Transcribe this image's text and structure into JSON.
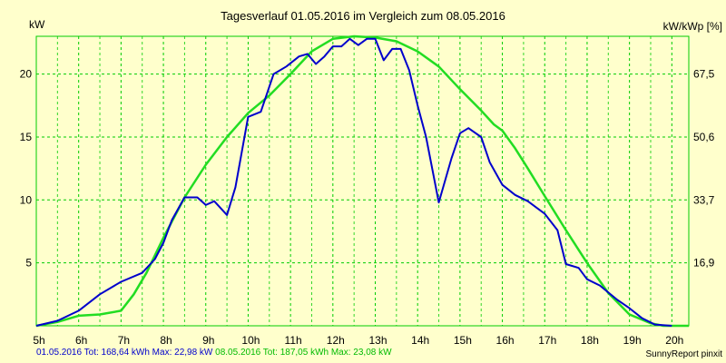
{
  "chart_data": {
    "type": "line",
    "title": "Tagesverlauf 01.05.2016 im Vergleich zum 08.05.2016",
    "ylabel": "kW",
    "y2label": "kW/kWp [%]",
    "xlim": [
      5,
      20.4
    ],
    "ylim": [
      0,
      23
    ],
    "x_ticks": [
      "5h",
      "6h",
      "7h",
      "8h",
      "9h",
      "10h",
      "11h",
      "12h",
      "13h",
      "14h",
      "15h",
      "16h",
      "17h",
      "18h",
      "19h",
      "20h"
    ],
    "y_ticks": [
      "5",
      "10",
      "15",
      "20"
    ],
    "y2_ticks": [
      "16,9",
      "33,7",
      "50,6",
      "67,5"
    ],
    "grid": true,
    "colors": {
      "background": "#ffffcc",
      "grid": "#00cc00",
      "series1": "#0000cc",
      "series2": "#22dd22"
    },
    "series": [
      {
        "name": "01.05.2016",
        "x": [
          5,
          5.5,
          6,
          6.5,
          7,
          7.5,
          7.8,
          8,
          8.2,
          8.5,
          8.8,
          9,
          9.2,
          9.5,
          9.7,
          10,
          10.3,
          10.6,
          10.9,
          11.2,
          11.4,
          11.6,
          11.8,
          12,
          12.2,
          12.4,
          12.6,
          12.8,
          13,
          13.2,
          13.4,
          13.6,
          13.8,
          14,
          14.2,
          14.5,
          14.8,
          15,
          15.2,
          15.5,
          15.7,
          16,
          16.3,
          16.6,
          17,
          17.3,
          17.5,
          17.8,
          18,
          18.3,
          18.7,
          19,
          19.3,
          19.6,
          20
        ],
        "y": [
          0,
          0.4,
          1.2,
          2.5,
          3.5,
          4.2,
          5.3,
          6.6,
          8.4,
          10.2,
          10.2,
          9.6,
          9.9,
          8.8,
          11,
          16.6,
          17.0,
          20.0,
          20.6,
          21.4,
          21.6,
          20.8,
          21.4,
          22.2,
          22.2,
          22.8,
          22.3,
          22.8,
          22.8,
          21.1,
          22.0,
          22.0,
          20.3,
          17.5,
          15,
          9.8,
          13.3,
          15.3,
          15.7,
          15.0,
          13.0,
          11.2,
          10.4,
          9.9,
          8.9,
          7.6,
          4.9,
          4.6,
          3.7,
          3.2,
          2.1,
          1.4,
          0.6,
          0.1,
          0
        ]
      },
      {
        "name": "08.05.2016",
        "x": [
          5,
          5.5,
          6,
          6.5,
          7,
          7.3,
          7.6,
          8,
          8.5,
          9,
          9.5,
          10,
          10.5,
          11,
          11.5,
          12,
          12.5,
          13,
          13.5,
          14,
          14.5,
          15,
          15.5,
          15.8,
          16,
          16.3,
          16.6,
          17,
          17.5,
          18,
          18.5,
          19,
          19.5,
          19.8,
          20,
          20.4
        ],
        "y": [
          0,
          0.3,
          0.8,
          0.9,
          1.2,
          2.5,
          4.2,
          7.0,
          10.2,
          12.8,
          15.0,
          16.9,
          18.3,
          20.0,
          21.8,
          22.8,
          23.0,
          22.9,
          22.6,
          21.8,
          20.6,
          18.8,
          17.1,
          16.0,
          15.5,
          14.1,
          12.5,
          10.3,
          7.6,
          5.0,
          2.6,
          0.9,
          0.2,
          0,
          0,
          0
        ]
      }
    ],
    "footer": {
      "series1_text": "01.05.2016 Tot: 168,64 kWh Max: 22,98 kW",
      "series2_text": "08.05.2016 Tot: 187,05 kWh Max: 23,08 kW",
      "credit": "SunnyReport pinxit"
    }
  }
}
